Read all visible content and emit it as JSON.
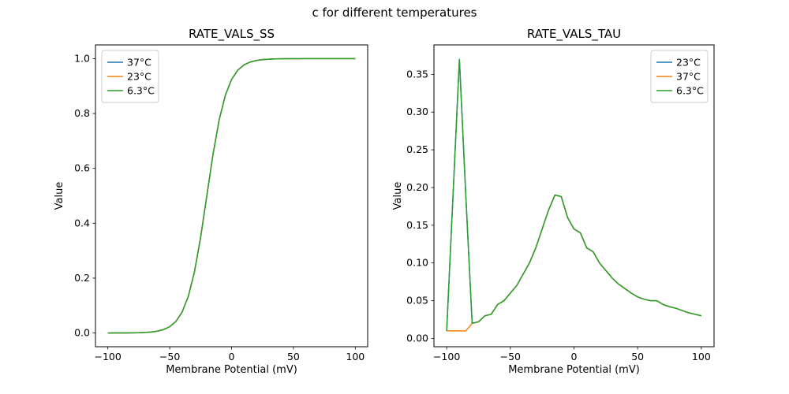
{
  "figure": {
    "title": "c for different temperatures"
  },
  "chart_data": [
    {
      "type": "line",
      "title": "RATE_VALS_SS",
      "xlabel": "Membrane Potential (mV)",
      "ylabel": "Value",
      "xlim": [
        -110,
        110
      ],
      "ylim": [
        -0.05,
        1.05
      ],
      "grid": false,
      "xticks": [
        {
          "v": -100,
          "label": "−100"
        },
        {
          "v": -50,
          "label": "−50"
        },
        {
          "v": 0,
          "label": "0"
        },
        {
          "v": 50,
          "label": "50"
        },
        {
          "v": 100,
          "label": "100"
        }
      ],
      "yticks": [
        {
          "v": 0.0,
          "label": "0.0"
        },
        {
          "v": 0.2,
          "label": "0.2"
        },
        {
          "v": 0.4,
          "label": "0.4"
        },
        {
          "v": 0.6,
          "label": "0.6"
        },
        {
          "v": 0.8,
          "label": "0.8"
        },
        {
          "v": 1.0,
          "label": "1.0"
        }
      ],
      "legend": {
        "loc": "upper left",
        "entries": [
          {
            "label": "37°C",
            "color": "#1f77b4"
          },
          {
            "label": "23°C",
            "color": "#ff7f0e"
          },
          {
            "label": "6.3°C",
            "color": "#2ca02c"
          }
        ]
      },
      "x": [
        -100,
        -95,
        -90,
        -85,
        -80,
        -75,
        -70,
        -65,
        -60,
        -55,
        -50,
        -45,
        -40,
        -35,
        -30,
        -25,
        -20,
        -15,
        -10,
        -5,
        0,
        5,
        10,
        15,
        20,
        25,
        30,
        35,
        40,
        45,
        50,
        55,
        60,
        65,
        70,
        75,
        80,
        85,
        90,
        95,
        100
      ],
      "shared_values": [
        0.0,
        0.0001,
        0.0002,
        0.0003,
        0.0006,
        0.001,
        0.0019,
        0.0036,
        0.0067,
        0.0124,
        0.023,
        0.0421,
        0.0759,
        0.133,
        0.2227,
        0.3487,
        0.5,
        0.6513,
        0.7773,
        0.867,
        0.9241,
        0.9579,
        0.977,
        0.9876,
        0.9933,
        0.9964,
        0.9981,
        0.999,
        0.9994,
        0.9997,
        0.9998,
        0.9999,
        1.0,
        1.0,
        1.0,
        1.0,
        1.0,
        1.0,
        1.0,
        1.0,
        1.0
      ],
      "series": [
        {
          "name": "37°C",
          "color": "#1f77b4"
        },
        {
          "name": "23°C",
          "color": "#ff7f0e"
        },
        {
          "name": "6.3°C",
          "color": "#2ca02c"
        }
      ]
    },
    {
      "type": "line",
      "title": "RATE_VALS_TAU",
      "xlabel": "Membrane Potential (mV)",
      "ylabel": "Value",
      "xlim": [
        -110,
        110
      ],
      "ylim": [
        -0.011,
        0.389
      ],
      "grid": false,
      "xticks": [
        {
          "v": -100,
          "label": "−100"
        },
        {
          "v": -50,
          "label": "−50"
        },
        {
          "v": 0,
          "label": "0"
        },
        {
          "v": 50,
          "label": "50"
        },
        {
          "v": 100,
          "label": "100"
        }
      ],
      "yticks": [
        {
          "v": 0.0,
          "label": "0.00"
        },
        {
          "v": 0.05,
          "label": "0.05"
        },
        {
          "v": 0.1,
          "label": "0.10"
        },
        {
          "v": 0.15,
          "label": "0.15"
        },
        {
          "v": 0.2,
          "label": "0.20"
        },
        {
          "v": 0.25,
          "label": "0.25"
        },
        {
          "v": 0.3,
          "label": "0.30"
        },
        {
          "v": 0.35,
          "label": "0.35"
        }
      ],
      "legend": {
        "loc": "upper right",
        "entries": [
          {
            "label": "23°C",
            "color": "#1f77b4"
          },
          {
            "label": "37°C",
            "color": "#ff7f0e"
          },
          {
            "label": "6.3°C",
            "color": "#2ca02c"
          }
        ]
      },
      "x": [
        -100,
        -95,
        -90,
        -85,
        -80,
        -75,
        -70,
        -65,
        -60,
        -55,
        -50,
        -45,
        -40,
        -35,
        -30,
        -25,
        -20,
        -15,
        -10,
        -5,
        0,
        5,
        10,
        15,
        20,
        25,
        30,
        35,
        40,
        45,
        50,
        55,
        60,
        65,
        70,
        75,
        80,
        85,
        90,
        95,
        100
      ],
      "shared_values": [
        0.01,
        0.19,
        0.37,
        0.19,
        0.02,
        0.022,
        0.03,
        0.032,
        0.045,
        0.05,
        0.06,
        0.07,
        0.085,
        0.1,
        0.12,
        0.145,
        0.17,
        0.19,
        0.188,
        0.16,
        0.145,
        0.14,
        0.12,
        0.115,
        0.1,
        0.09,
        0.08,
        0.072,
        0.066,
        0.06,
        0.055,
        0.052,
        0.05,
        0.05,
        0.045,
        0.042,
        0.04,
        0.037,
        0.034,
        0.032,
        0.03
      ],
      "series": [
        {
          "name": "23°C",
          "color": "#1f77b4"
        },
        {
          "name": "37°C",
          "color": "#ff7f0e",
          "values": [
            0.01,
            0.01,
            0.01,
            0.01,
            0.02,
            0.022,
            0.03,
            0.032,
            0.045,
            0.05,
            0.06,
            0.07,
            0.085,
            0.1,
            0.12,
            0.145,
            0.17,
            0.19,
            0.188,
            0.16,
            0.145,
            0.14,
            0.12,
            0.115,
            0.1,
            0.09,
            0.08,
            0.072,
            0.066,
            0.06,
            0.055,
            0.052,
            0.05,
            0.05,
            0.045,
            0.042,
            0.04,
            0.037,
            0.034,
            0.032,
            0.03
          ]
        },
        {
          "name": "6.3°C",
          "color": "#2ca02c"
        }
      ]
    }
  ]
}
